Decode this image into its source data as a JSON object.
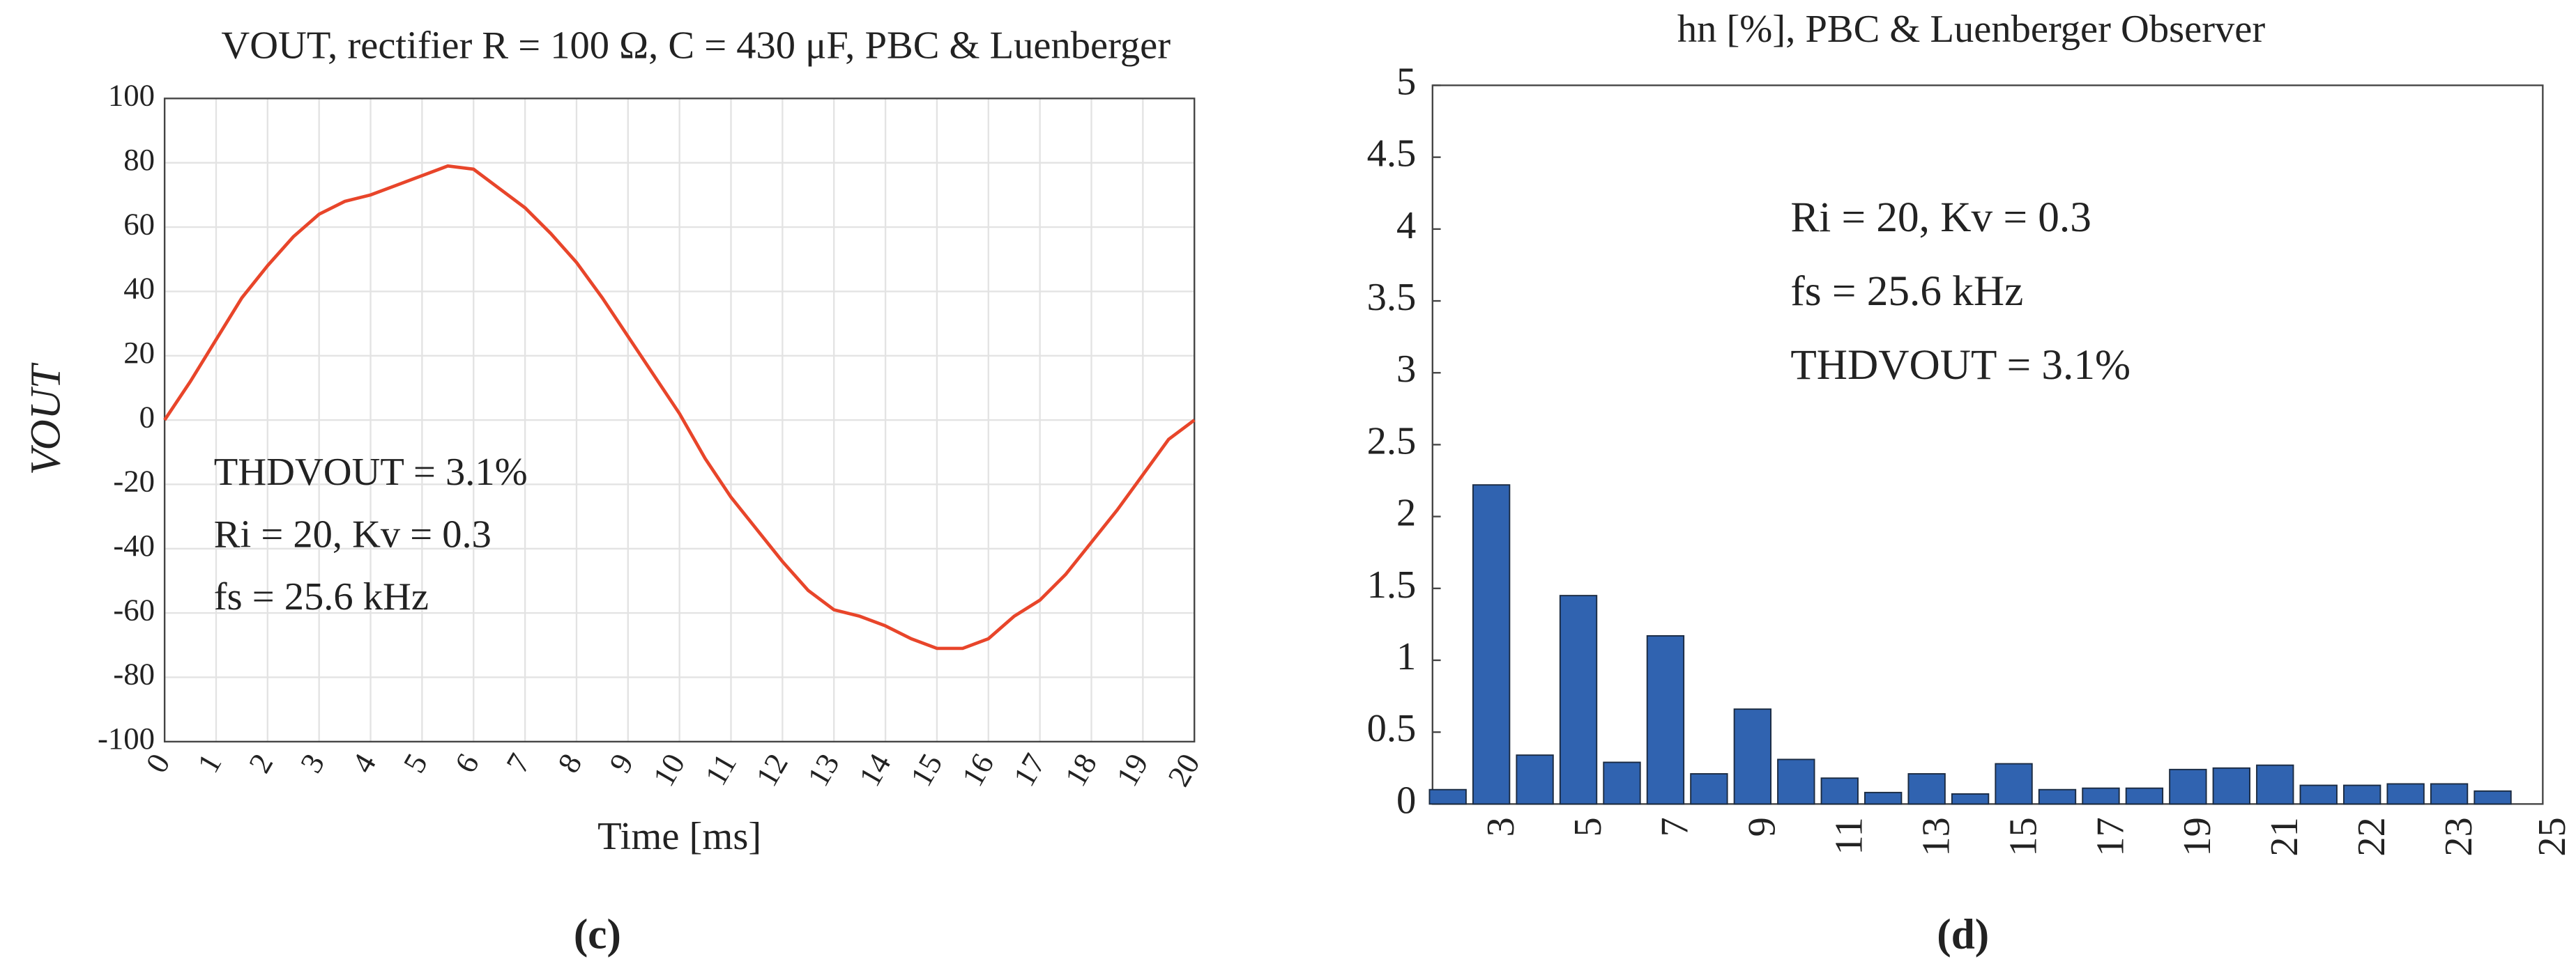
{
  "chart_data": [
    {
      "type": "line",
      "title": "VOUT, rectifier R = 100 Ω, C = 430 μF, PBC & Luenberger",
      "x_label": "Time [ms]",
      "y_label": "VOUT",
      "annotations": [
        "THDVOUT = 3.1%",
        "Ri = 20, Kv = 0.3",
        "fs = 25.6 kHz"
      ],
      "caption": "(c)",
      "x": [
        0,
        0.5,
        1,
        1.5,
        2,
        2.5,
        3,
        3.5,
        4,
        4.5,
        5,
        5.5,
        6,
        6.5,
        7,
        7.5,
        8,
        8.5,
        9,
        9.5,
        10,
        10.5,
        11,
        11.5,
        12,
        12.5,
        13,
        13.5,
        14,
        14.5,
        15,
        15.5,
        16,
        16.5,
        17,
        17.5,
        18,
        18.5,
        19,
        19.5,
        20
      ],
      "series": [
        {
          "name": "VOUT",
          "color": "#e8452a",
          "values": [
            0,
            12,
            25,
            38,
            48,
            57,
            64,
            68,
            70,
            73,
            76,
            79,
            78,
            72,
            66,
            58,
            49,
            38,
            26,
            14,
            2,
            -12,
            -24,
            -34,
            -44,
            -53,
            -59,
            -61,
            -64,
            -68,
            -71,
            -71,
            -68,
            -61,
            -56,
            -48,
            -38,
            -28,
            -17,
            -6,
            0
          ]
        }
      ],
      "xlim": [
        0,
        20
      ],
      "xticks": [
        0,
        1,
        2,
        3,
        4,
        5,
        6,
        7,
        8,
        9,
        10,
        11,
        12,
        13,
        14,
        15,
        16,
        17,
        18,
        19,
        20
      ],
      "ylim": [
        -100,
        100
      ],
      "yticks": [
        -100,
        -80,
        -60,
        -40,
        -20,
        0,
        20,
        40,
        60,
        80,
        100
      ],
      "grid": true
    },
    {
      "type": "bar",
      "title": "hn [%], PBC & Luenberger Observer",
      "annotations": [
        "Ri = 20, Kv = 0.3",
        "fs = 25.6 kHz",
        "THDVOUT = 3.1%"
      ],
      "caption": "(d)",
      "categories": [
        null,
        "3",
        null,
        "5",
        null,
        "7",
        null,
        "9",
        null,
        "11",
        null,
        "13",
        null,
        "15",
        null,
        "17",
        null,
        "19",
        null,
        "21",
        null,
        "22",
        null,
        "23",
        "25"
      ],
      "values": [
        0.1,
        2.22,
        0.34,
        1.45,
        0.29,
        1.17,
        0.21,
        0.66,
        0.31,
        0.18,
        0.08,
        0.21,
        0.07,
        0.28,
        0.1,
        0.11,
        0.11,
        0.24,
        0.25,
        0.27,
        0.13,
        0.13,
        0.14,
        0.14,
        0.09
      ],
      "color": "#3063b0",
      "ylim": [
        0,
        5
      ],
      "yticks": [
        0,
        0.5,
        1,
        1.5,
        2,
        2.5,
        3,
        3.5,
        4,
        4.5,
        5
      ],
      "grid": false
    }
  ]
}
